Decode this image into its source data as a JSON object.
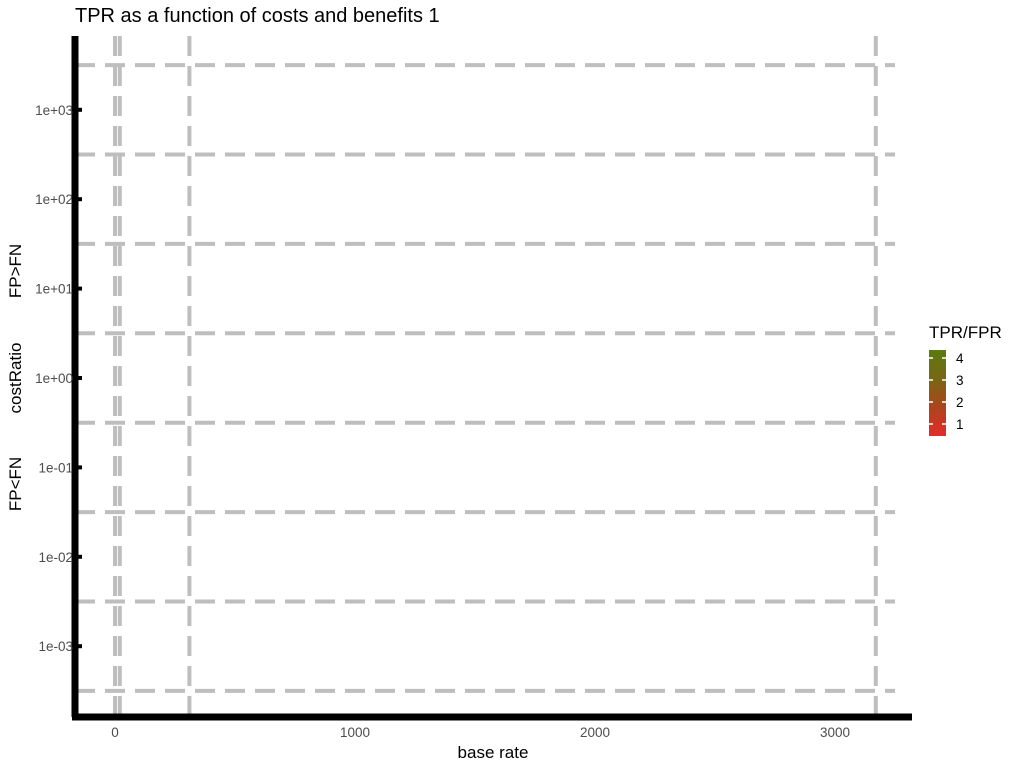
{
  "chart_data": {
    "type": "heatmap",
    "title": "TPR as a function of costs and benefits 1",
    "xlabel": "base rate",
    "ylabel": "costRatio",
    "ylabel_high": "FP>FN",
    "ylabel_low": "FP<FN",
    "x_scale": "reciprocal",
    "y_scale": "log10",
    "x_ticks": [
      0,
      1000,
      2000,
      3000
    ],
    "x_tick_labels": [
      "0",
      "1000",
      "2000",
      "3000"
    ],
    "y_ticks": [
      0.001,
      0.01,
      0.1,
      1,
      10,
      100,
      1000
    ],
    "y_tick_labels": [
      "1e-03",
      "1e-02",
      "1e-01",
      "1e+00",
      "1e+01",
      "1e+02",
      "1e+03"
    ],
    "xlim": [
      -150,
      3300
    ],
    "grid": true,
    "legend": {
      "title": "TPR/FPR",
      "position": "right",
      "labels": [
        "4",
        "3",
        "2",
        "1"
      ],
      "values": [
        4,
        3,
        2,
        1
      ],
      "color_high": "#5a7a10",
      "color_low": "#e32b2b"
    },
    "values": []
  }
}
